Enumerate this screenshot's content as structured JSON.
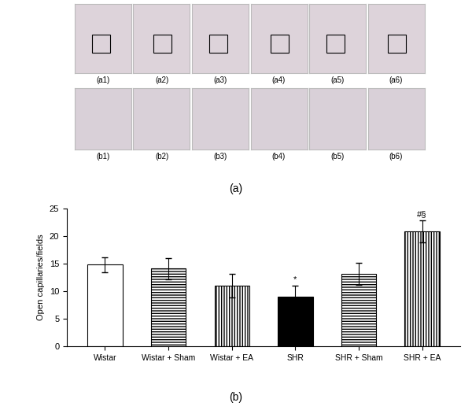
{
  "panel_labels": [
    "(a)",
    "(b)"
  ],
  "image_rows": [
    [
      "(a1)",
      "(a2)",
      "(a3)",
      "(a4)",
      "(a5)",
      "(a6)"
    ],
    [
      "(b1)",
      "(b2)",
      "(b3)",
      "(b4)",
      "(b5)",
      "(b6)"
    ]
  ],
  "chart_data": {
    "type": "bar",
    "y_label": "Open capillaries/fields",
    "categories": [
      "Wistar",
      "Wistar + Sham",
      "Wistar + EA",
      "SHR",
      "SHR + Sham",
      "SHR + EA"
    ],
    "values": [
      14.8,
      14.1,
      11.0,
      9.0,
      13.1,
      20.8
    ],
    "errors": [
      1.4,
      1.9,
      2.1,
      2.0,
      2.0,
      2.0
    ],
    "colors": [
      "#ffffff",
      "#ffffff",
      "#ffffff",
      "#000000",
      "#ffffff",
      "#ffffff"
    ],
    "annotations": [
      {
        "category": "SHR",
        "text": "*"
      },
      {
        "category": "SHR + EA",
        "text": "#§"
      }
    ],
    "ylim": [
      0,
      25
    ],
    "yticks": [
      0,
      5,
      10,
      15,
      20,
      25
    ],
    "grid": false
  }
}
